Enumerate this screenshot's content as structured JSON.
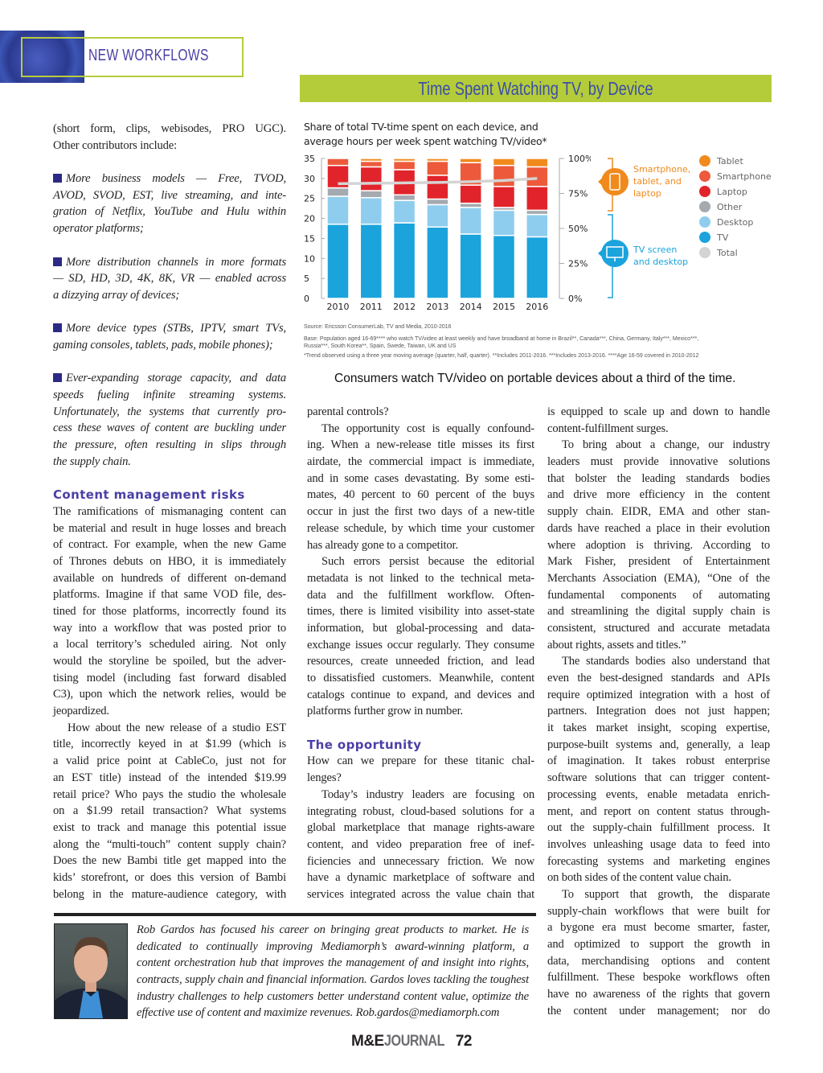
{
  "header": {
    "section": "NEW WORKFLOWS"
  },
  "chart_banner": "Time Spent Watching TV, by Device",
  "chart_data": {
    "type": "bar",
    "stacked": true,
    "title_lines": [
      "Share of total TV-time spent on each device, and",
      "average hours per week spent watching TV/video*"
    ],
    "categories": [
      "2010",
      "2011",
      "2012",
      "2013",
      "2014",
      "2015",
      "2016"
    ],
    "series": [
      {
        "name": "Tablet",
        "color": "#f08a1d",
        "values": [
          0,
          2,
          2,
          2,
          3,
          5,
          6
        ]
      },
      {
        "name": "Smartphone",
        "color": "#ec5a3b",
        "values": [
          5,
          4,
          6,
          10,
          16,
          15,
          14
        ]
      },
      {
        "name": "Laptop",
        "color": "#e1242b",
        "values": [
          16,
          17,
          18,
          17,
          13,
          15,
          17
        ]
      },
      {
        "name": "Other",
        "color": "#a4aaaf",
        "values": [
          6,
          5,
          4,
          4,
          3,
          2,
          3
        ]
      },
      {
        "name": "Desktop",
        "color": "#8fcdee",
        "values": [
          20,
          19,
          16,
          16,
          19,
          18,
          16
        ]
      },
      {
        "name": "TV",
        "color": "#1ba3dc",
        "values": [
          53,
          53,
          54,
          51,
          46,
          45,
          44
        ]
      }
    ],
    "line_series": {
      "name": "Total",
      "color": "#d4d4d4",
      "unit": "hours per week",
      "values": [
        28.7,
        28.8,
        28.9,
        29.0,
        29.2,
        29.5,
        30.0
      ]
    },
    "y_left": {
      "range": [
        0,
        35
      ],
      "ticks": [
        "0",
        "5",
        "10",
        "15",
        "20",
        "25",
        "30",
        "35"
      ]
    },
    "y_right": {
      "range": [
        0,
        100
      ],
      "unit": "%",
      "ticks": [
        "0%",
        "25%",
        "50%",
        "75%",
        "100%"
      ]
    },
    "annotations": {
      "portable": {
        "lines": [
          "Smartphone,",
          "tablet, and",
          "laptop"
        ],
        "color": "#f08a1d"
      },
      "fixed": {
        "lines": [
          "TV screen",
          "and desktop"
        ],
        "color": "#1ba3dc"
      }
    },
    "legend_position": "right",
    "source": "Source: Ericsson ConsumerLab, TV and Media, 2010-2016",
    "base_lines": [
      "Base: Population aged 16-69**** who watch TV/video at least weekly and have broadband at home in Brazil**, Canada***, China, Germany, Italy***, Mexico***,",
      "Russia***, South Korea**, Spain, Swede, Taiwan, UK and US"
    ],
    "footnote": "*Trend observed using a three year moving average (quarter, half, quarter). **Includes 2011-2016. ***Includes 2013-2016. ****Age 16-59 covered in 2010-2012"
  },
  "caption": "Consumers watch TV/video on portable devices about a third of the time.",
  "article": {
    "left": [
      {
        "type": "p",
        "lines": [
          "(short form, clips, webisodes, PRO UGC).",
          "Other contributors include:"
        ]
      },
      {
        "type": "gap"
      },
      {
        "type": "bullet",
        "lines": [
          "More business models — Free, TVOD,",
          "AVOD, SVOD, EST, live streaming, and inte-",
          "gration of Netflix, YouTube and Hulu within",
          "operator platforms;"
        ]
      },
      {
        "type": "gap"
      },
      {
        "type": "bullet",
        "lines": [
          "More distribution channels in more formats",
          "— SD, HD, 3D, 4K, 8K, VR — enabled across",
          "a dizzying array of devices;"
        ]
      },
      {
        "type": "gap"
      },
      {
        "type": "bullet",
        "lines": [
          "More device types (STBs, IPTV, smart TVs,",
          "gaming consoles, tablets, pads, mobile phones);"
        ]
      },
      {
        "type": "gap"
      },
      {
        "type": "bullet",
        "lines": [
          "Ever-expanding storage capacity, and data",
          "speeds fueling infinite streaming systems.",
          "Unfortunately, the systems that currently pro-",
          "cess these waves of content are buckling under",
          "the pressure, often resulting in slips through",
          "the supply chain."
        ]
      },
      {
        "type": "gap"
      },
      {
        "type": "heading",
        "text": "Content management risks"
      },
      {
        "type": "p",
        "lines": [
          "The ramifications of mismanaging content can",
          "be material and result in huge losses and breach",
          "of contract. For example, when the new Game",
          "of Thrones debuts on HBO, it is immediately",
          "available on hundreds of different on-demand",
          "platforms. Imagine if that same VOD file, des-",
          "tined for those platforms, incorrectly found its",
          "way into a workflow that was posted prior to",
          "a local territory’s scheduled airing. Not only",
          "would the storyline be spoiled, but the adver-",
          "tising model (including fast forward disabled",
          "C3), upon which the network relies, would be",
          "jeopardized."
        ]
      },
      {
        "type": "p",
        "indent": true,
        "open": true,
        "lines": [
          "How about the new release of a studio EST",
          "title, incorrectly keyed in at $1.99 (which is",
          "a valid price point at CableCo, just not for",
          "an EST title) instead of the intended $19.99",
          "retail price? Who pays the studio the wholesale",
          "on a $1.99 retail transaction? What systems",
          "exist to track and manage this potential issue",
          "along the “multi-touch” content supply chain?",
          "Does the new Bambi title get mapped into the",
          "kids’ storefront, or does this version of Bambi",
          "belong in the mature-audience category, with"
        ]
      }
    ],
    "middle": [
      {
        "type": "p",
        "lines": [
          "parental controls?"
        ]
      },
      {
        "type": "p",
        "indent": true,
        "lines": [
          "The opportunity cost is equally confound-",
          "ing. When a new-release title misses its first",
          "airdate, the commercial impact is immediate,",
          "and in some cases devastating. By some esti-",
          "mates, 40 percent to 60 percent of the buys",
          "occur in just the first two days of a new-title",
          "release schedule, by which time your customer",
          "has already gone to a competitor."
        ]
      },
      {
        "type": "p",
        "indent": true,
        "lines": [
          "Such errors persist because the editorial",
          "metadata is not linked to the technical meta-",
          "data and the fulfillment workflow. Often-",
          "times, there is limited visibility into asset-state",
          "information, but global-processing and data-",
          "exchange issues occur regularly. They consume",
          "resources, create unneeded friction, and lead",
          "to dissatisfied customers. Meanwhile, content",
          "catalogs continue to expand, and devices and",
          "platforms further grow in number."
        ]
      },
      {
        "type": "gap"
      },
      {
        "type": "heading",
        "text": "The opportunity"
      },
      {
        "type": "p",
        "lines": [
          "How can we prepare for these titanic chal-",
          "lenges?"
        ]
      },
      {
        "type": "p",
        "indent": true,
        "open": true,
        "lines": [
          "Today’s industry leaders are focusing on",
          "integrating robust, cloud-based solutions for a",
          "global marketplace that manage rights-aware",
          "content, and video preparation free of inef-",
          "ficiencies and unnecessary friction. We now",
          "have a dynamic marketplace of software and",
          "services integrated across the value chain that"
        ]
      }
    ],
    "right": [
      {
        "type": "p",
        "lines": [
          "is equipped to scale up and down to handle",
          "content-fulfillment surges."
        ]
      },
      {
        "type": "p",
        "indent": true,
        "lines": [
          "To bring about a change, our industry",
          "leaders must provide innovative solutions",
          "that bolster the leading standards bodies",
          "and drive more efficiency in the content",
          "supply chain. EIDR, EMA and other stan-",
          "dards have reached a place in their evolution",
          "where adoption is thriving. According to",
          "Mark Fisher, president of Entertainment",
          "Merchants Association (EMA), “One of the",
          "fundamental components of automating",
          "and streamlining the digital supply chain is",
          "consistent, structured and accurate metadata",
          "about rights, assets and titles.”"
        ]
      },
      {
        "type": "p",
        "indent": true,
        "lines": [
          "The standards bodies also understand that",
          "even the best-designed standards and APIs",
          "require optimized integration with a host of",
          "partners. Integration does not just happen;",
          "it takes market insight, scoping expertise,",
          "purpose-built systems and, generally, a leap",
          "of imagination. It takes robust enterprise",
          "software solutions that can trigger content-",
          "processing events, enable metadata enrich-",
          "ment, and report on content status through-",
          "out the supply-chain fulfillment process. It",
          "involves unleashing usage data to feed into",
          "forecasting systems and marketing engines",
          "on both sides of the content value chain."
        ]
      },
      {
        "type": "p",
        "indent": true,
        "open": true,
        "lines": [
          "To support that growth, the disparate",
          "supply-chain workflows that were built for",
          "a bygone era must become smarter, faster,",
          "and optimized to support the growth in",
          "data, merchandising options and content",
          "fulfillment. These bespoke workflows often",
          "have no awareness of the rights that govern",
          "the content under management; nor do"
        ]
      }
    ]
  },
  "bio": {
    "lines": [
      "Rob Gardos has focused his career on bringing great products to market. He is",
      "dedicated to continually improving Mediamorph’s award-winning platform, a",
      "content orchestration hub that improves the management of and insight into rights,",
      "contracts, supply chain and financial information. Gardos loves tackling the toughest",
      "industry challenges to help customers better understand content value, optimize the",
      "effective use of content and maximize revenues. Rob.gardos@mediamorph.com"
    ]
  },
  "footer": {
    "brand_a": "M&E",
    "brand_b": "JOURNAL",
    "page": "72"
  }
}
